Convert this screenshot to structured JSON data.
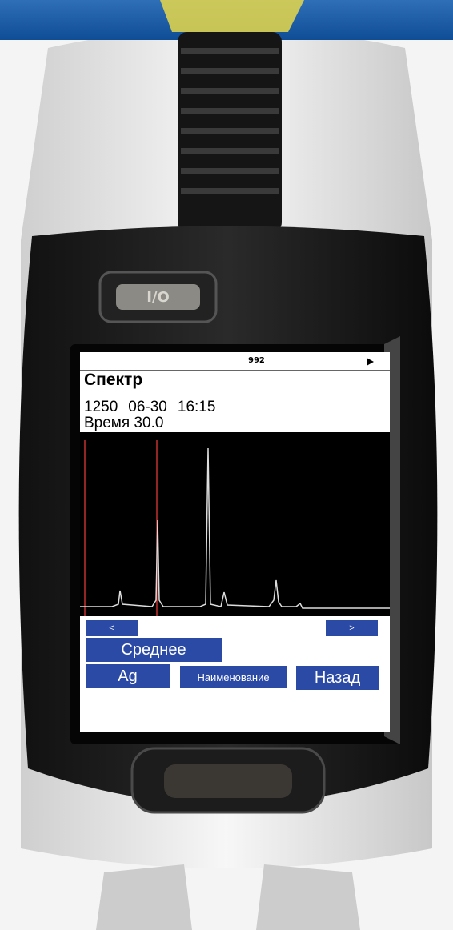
{
  "device": {
    "power_button": "I/O"
  },
  "screen": {
    "status": {
      "counter": "992"
    },
    "title": "Спектр",
    "info": {
      "number": "1250",
      "date": "06-30",
      "time": "16:15",
      "duration": "Время 30.0"
    },
    "nav": {
      "prev": "<",
      "next": ">"
    },
    "buttons": {
      "average": "Среднее",
      "element": "Ag",
      "name": "Наименование",
      "back": "Назад"
    }
  }
}
